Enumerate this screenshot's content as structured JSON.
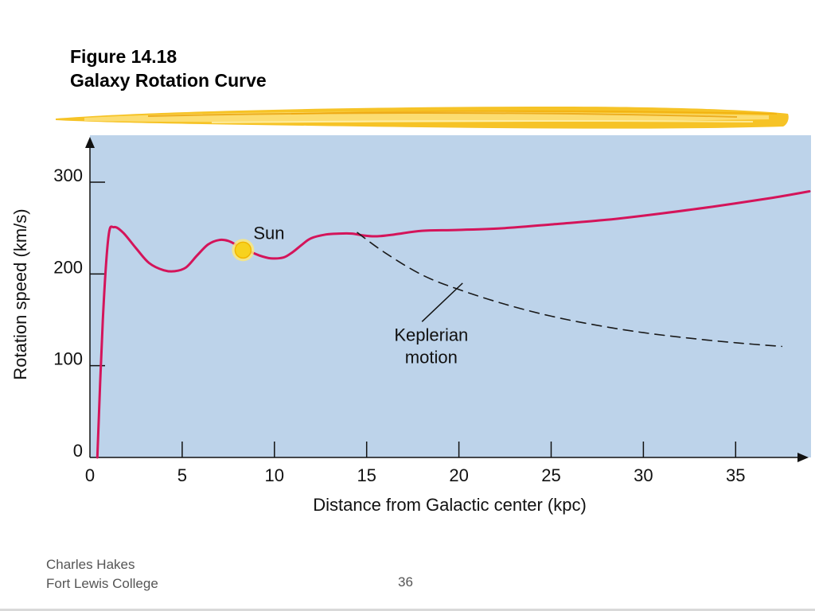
{
  "slide": {
    "title_line1": "Figure 14.18",
    "title_line2": "Galaxy Rotation Curve",
    "footer_line1": "Charles Hakes",
    "footer_line2": "Fort Lewis College",
    "page_number": "36"
  },
  "colors": {
    "plot_background": "#bdd3ea",
    "rotation_curve": "#d4145a",
    "keplerian": "#1a1a1a",
    "sun_fill": "#f7d21e",
    "sun_glow": "#fbe77a",
    "brush_stroke": "#f5b800"
  },
  "chart_data": {
    "type": "line",
    "xlabel": "Distance from Galactic center (kpc)",
    "ylabel": "Rotation speed (km/s)",
    "xlim": [
      0,
      39
    ],
    "ylim": [
      0,
      340
    ],
    "x_ticks": [
      0,
      5,
      10,
      15,
      20,
      25,
      30,
      35
    ],
    "y_ticks": [
      0,
      100,
      200,
      300
    ],
    "grid": false,
    "series": [
      {
        "name": "",
        "style": "solid",
        "points": [
          [
            0.4,
            0
          ],
          [
            0.7,
            150
          ],
          [
            1.0,
            240
          ],
          [
            1.3,
            251
          ],
          [
            1.8,
            245
          ],
          [
            2.5,
            228
          ],
          [
            3.2,
            212
          ],
          [
            4.0,
            204
          ],
          [
            4.6,
            203
          ],
          [
            5.2,
            207
          ],
          [
            5.8,
            220
          ],
          [
            6.4,
            232
          ],
          [
            7.0,
            237
          ],
          [
            7.5,
            236
          ],
          [
            8.0,
            231
          ],
          [
            8.5,
            226
          ],
          [
            9.2,
            220
          ],
          [
            9.8,
            217
          ],
          [
            10.5,
            218
          ],
          [
            11.0,
            224
          ],
          [
            11.5,
            232
          ],
          [
            12.0,
            239
          ],
          [
            12.8,
            243
          ],
          [
            13.5,
            244
          ],
          [
            14.2,
            244
          ],
          [
            14.8,
            242
          ],
          [
            15.5,
            241
          ],
          [
            16.5,
            243
          ],
          [
            18.0,
            247
          ],
          [
            20.0,
            248
          ],
          [
            22.5,
            250
          ],
          [
            25.0,
            254
          ],
          [
            28.0,
            259
          ],
          [
            31.0,
            266
          ],
          [
            34.0,
            274
          ],
          [
            37.0,
            283
          ],
          [
            39.0,
            290
          ]
        ]
      },
      {
        "name": "Keplerian motion",
        "style": "dashed",
        "points": [
          [
            14.5,
            245
          ],
          [
            16.0,
            223
          ],
          [
            18.0,
            199
          ],
          [
            20.0,
            183
          ],
          [
            22.5,
            167
          ],
          [
            25.0,
            154
          ],
          [
            27.5,
            144
          ],
          [
            30.0,
            136
          ],
          [
            32.5,
            130
          ],
          [
            35.0,
            125
          ],
          [
            37.5,
            121
          ]
        ]
      }
    ],
    "annotations": [
      {
        "name": "sun",
        "text": "Sun",
        "x": 8.3,
        "y": 226
      },
      {
        "name": "keplerian",
        "line1": "Keplerian",
        "line2": "motion",
        "x": 18.5,
        "y": 127,
        "pointer_from": [
          18.0,
          148
        ],
        "pointer_to": [
          20.2,
          190
        ]
      }
    ]
  }
}
